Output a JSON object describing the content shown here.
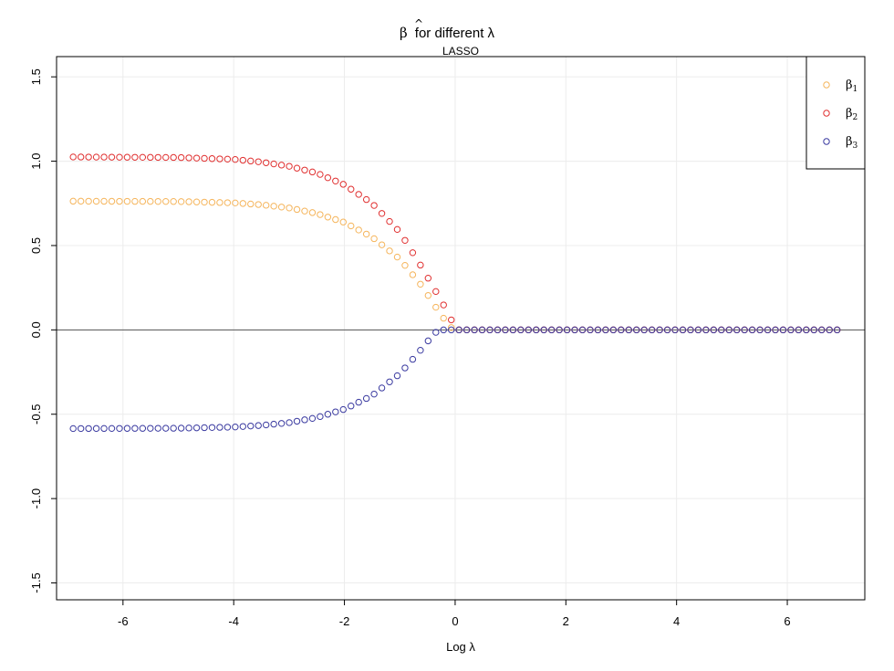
{
  "chart_data": {
    "type": "scatter",
    "title_symbol": "β",
    "title_hat": "^",
    "title_text": "for different λ",
    "subtitle": "LASSO",
    "xlabel": "Log λ",
    "ylabel": "",
    "xlim": [
      -7.2,
      7.4
    ],
    "ylim": [
      -1.6,
      1.62
    ],
    "xticks": [
      -6,
      -4,
      -2,
      0,
      2,
      4,
      6
    ],
    "xtick_labels": [
      "-6",
      "-4",
      "-2",
      "0",
      "2",
      "4",
      "6"
    ],
    "yticks": [
      -1.5,
      -1.0,
      -0.5,
      0.0,
      0.5,
      1.0,
      1.5
    ],
    "ytick_labels": [
      "-1.5",
      "-1.0",
      "-0.5",
      "0.0",
      "0.5",
      "1.0",
      "1.5"
    ],
    "grid": true,
    "reference_line_y": 0,
    "legend_position": "top-right",
    "x_start": -6.9,
    "x_end": 6.9,
    "n_points": 100,
    "series": [
      {
        "name": "β",
        "subscript": "1",
        "color": "#F5B55C",
        "plateau": 0.763,
        "knots": [
          [
            -6.9,
            0.763
          ],
          [
            -5,
            0.761
          ],
          [
            -4,
            0.753
          ],
          [
            -3.5,
            0.742
          ],
          [
            -3,
            0.723
          ],
          [
            -2.5,
            0.69
          ],
          [
            -2,
            0.637
          ],
          [
            -1.5,
            0.55
          ],
          [
            -1,
            0.42
          ],
          [
            -0.6,
            0.26
          ],
          [
            -0.3,
            0.11
          ],
          [
            -0.1,
            0.02
          ],
          [
            0,
            0
          ],
          [
            6.9,
            0
          ]
        ]
      },
      {
        "name": "β",
        "subscript": "2",
        "color": "#E03030",
        "knots": [
          [
            -6.9,
            1.025
          ],
          [
            -5,
            1.022
          ],
          [
            -4,
            1.011
          ],
          [
            -3.5,
            0.995
          ],
          [
            -3,
            0.97
          ],
          [
            -2.5,
            0.93
          ],
          [
            -2,
            0.86
          ],
          [
            -1.5,
            0.75
          ],
          [
            -1,
            0.58
          ],
          [
            -0.6,
            0.37
          ],
          [
            -0.3,
            0.2
          ],
          [
            -0.1,
            0.085
          ],
          [
            0,
            0
          ],
          [
            6.9,
            0
          ]
        ]
      },
      {
        "name": "β",
        "subscript": "3",
        "color": "#3A3AA0",
        "knots": [
          [
            -6.9,
            -0.585
          ],
          [
            -5,
            -0.583
          ],
          [
            -4,
            -0.576
          ],
          [
            -3.5,
            -0.566
          ],
          [
            -3,
            -0.55
          ],
          [
            -2.5,
            -0.52
          ],
          [
            -2,
            -0.47
          ],
          [
            -1.5,
            -0.39
          ],
          [
            -1,
            -0.26
          ],
          [
            -0.7,
            -0.15
          ],
          [
            -0.4,
            -0.03
          ],
          [
            -0.3,
            0
          ],
          [
            6.9,
            0
          ]
        ]
      }
    ]
  }
}
